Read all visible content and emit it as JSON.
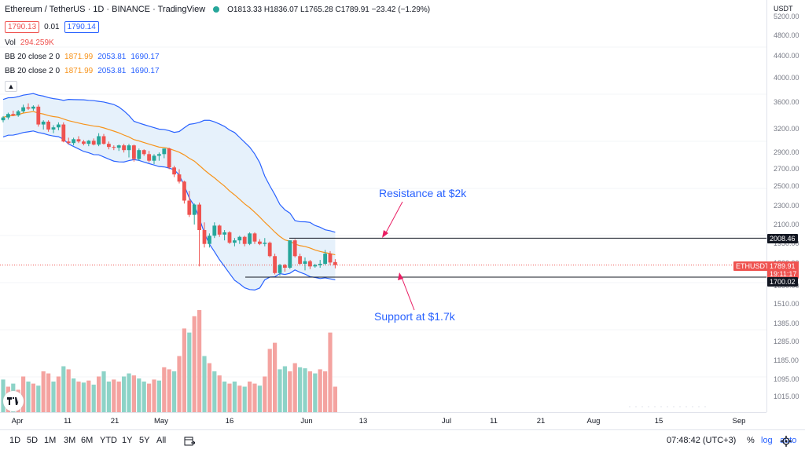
{
  "header": {
    "symbol": "Ethereum / TetherUS · 1D · BINANCE · TradingView",
    "status_dot_color": "#26a69a",
    "ohlc": "O1813.33 H1836.07 L1765.28 C1789.91 −23.42 (−1.29%)",
    "bid": "1790.13",
    "spread": "0.01",
    "ask": "1790.14",
    "vol_label": "Vol",
    "vol_value": "294.259K",
    "bb1_label": "BB 20 close 2 0",
    "bb1_basis": "1871.99",
    "bb1_upper": "2053.81",
    "bb1_lower": "1690.17",
    "bb2_label": "BB 20 close 2 0",
    "bb2_basis": "1871.99",
    "bb2_upper": "2053.81",
    "bb2_lower": "1690.17",
    "collapse_icon": "chevron-up-icon"
  },
  "price_axis": {
    "currency": "USDT",
    "ticks": [
      "5200.00",
      "4800.00",
      "4400.00",
      "4000.00",
      "3600.00",
      "3200.00",
      "2900.00",
      "2700.00",
      "2500.00",
      "2300.00",
      "2100.00",
      "1950.00",
      "1800.00",
      "1650.00",
      "1510.00",
      "1385.00",
      "1285.00",
      "1185.00",
      "1095.00",
      "1015.00"
    ]
  },
  "tags": {
    "resistance_value": "2008.46",
    "symbol_tag": "ETHUSDT",
    "last_price": "1789.91",
    "countdown": "19:11:17",
    "support_value": "1700.02"
  },
  "annotations": {
    "resistance": "Resistance at $2k",
    "support": "Support at $1.7k"
  },
  "time_axis": {
    "labels": [
      "Apr",
      "11",
      "21",
      "May",
      "16",
      "Jun",
      "13",
      "Jul",
      "11",
      "21",
      "Aug",
      "15",
      "Sep"
    ]
  },
  "bottom_bar": {
    "ranges": [
      "1D",
      "5D",
      "1M",
      "3M",
      "6M",
      "YTD",
      "1Y",
      "5Y",
      "All"
    ],
    "clock": "07:48:42 (UTC+3)",
    "percent": "%",
    "log": "log",
    "auto": "auto"
  },
  "colors": {
    "up": "#26a69a",
    "down": "#ef5350",
    "band": "#2962ff",
    "basis": "#f7931a",
    "band_fill": "#e3f0fb"
  },
  "chart_data": {
    "type": "candlestick",
    "symbol": "ETHUSDT",
    "interval": "1D",
    "ohlc": [
      [
        3330,
        3390,
        3300,
        3370
      ],
      [
        3370,
        3440,
        3340,
        3420
      ],
      [
        3420,
        3470,
        3390,
        3400
      ],
      [
        3400,
        3480,
        3380,
        3460
      ],
      [
        3460,
        3560,
        3440,
        3520
      ],
      [
        3520,
        3580,
        3480,
        3500
      ],
      [
        3500,
        3550,
        3470,
        3530
      ],
      [
        3530,
        3560,
        3240,
        3270
      ],
      [
        3270,
        3330,
        3200,
        3310
      ],
      [
        3310,
        3330,
        3170,
        3200
      ],
      [
        3200,
        3260,
        3150,
        3230
      ],
      [
        3230,
        3300,
        3190,
        3270
      ],
      [
        3270,
        3300,
        3030,
        3040
      ],
      [
        3040,
        3090,
        3000,
        3020
      ],
      [
        3020,
        3090,
        2990,
        3070
      ],
      [
        3070,
        3110,
        3020,
        3040
      ],
      [
        3040,
        3060,
        2990,
        3010
      ],
      [
        3010,
        3060,
        2980,
        3050
      ],
      [
        3050,
        3080,
        2990,
        3000
      ],
      [
        3000,
        3150,
        2980,
        3110
      ],
      [
        3110,
        3140,
        3000,
        3010
      ],
      [
        3010,
        3040,
        2940,
        2970
      ],
      [
        2970,
        2990,
        2930,
        2960
      ],
      [
        2960,
        3000,
        2920,
        2990
      ],
      [
        2990,
        3010,
        2900,
        2930
      ],
      [
        2930,
        3010,
        2840,
        2990
      ],
      [
        2990,
        3000,
        2790,
        2820
      ],
      [
        2820,
        2950,
        2800,
        2930
      ],
      [
        2930,
        2940,
        2860,
        2880
      ],
      [
        2880,
        2920,
        2780,
        2800
      ],
      [
        2800,
        2880,
        2760,
        2860
      ],
      [
        2860,
        2900,
        2800,
        2880
      ],
      [
        2880,
        2950,
        2830,
        2950
      ],
      [
        2950,
        2960,
        2700,
        2720
      ],
      [
        2720,
        2740,
        2610,
        2640
      ],
      [
        2640,
        2700,
        2540,
        2560
      ],
      [
        2560,
        2570,
        2330,
        2360
      ],
      [
        2360,
        2460,
        2200,
        2220
      ],
      [
        2220,
        2330,
        2130,
        2320
      ],
      [
        2320,
        2340,
        1780,
        2080
      ],
      [
        2080,
        2150,
        1930,
        1960
      ],
      [
        1960,
        2050,
        1930,
        2030
      ],
      [
        2030,
        2150,
        2010,
        2120
      ],
      [
        2120,
        2130,
        2020,
        2040
      ],
      [
        2040,
        2080,
        1990,
        2060
      ],
      [
        2060,
        2070,
        1960,
        1970
      ],
      [
        1970,
        2010,
        1940,
        1990
      ],
      [
        1990,
        2030,
        1960,
        2020
      ],
      [
        2020,
        2030,
        1940,
        1960
      ],
      [
        1960,
        2060,
        1950,
        2050
      ],
      [
        2050,
        2060,
        1960,
        1980
      ],
      [
        1980,
        2000,
        1950,
        1960
      ],
      [
        1960,
        2010,
        1940,
        1970
      ],
      [
        1970,
        1980,
        1850,
        1860
      ],
      [
        1860,
        1880,
        1720,
        1730
      ],
      [
        1730,
        1800,
        1710,
        1790
      ],
      [
        1790,
        1800,
        1740,
        1770
      ],
      [
        1770,
        1990,
        1760,
        1990
      ],
      [
        1990,
        2000,
        1850,
        1860
      ],
      [
        1860,
        1880,
        1790,
        1800
      ],
      [
        1800,
        1850,
        1750,
        1820
      ],
      [
        1820,
        1830,
        1760,
        1780
      ],
      [
        1780,
        1800,
        1770,
        1790
      ],
      [
        1790,
        1830,
        1770,
        1800
      ],
      [
        1800,
        1910,
        1790,
        1880
      ],
      [
        1880,
        1900,
        1790,
        1810
      ],
      [
        1813.33,
        1836.07,
        1765.28,
        1789.91
      ]
    ],
    "volume": [
      [
        "up",
        0.32
      ],
      [
        "down",
        0.25
      ],
      [
        "up",
        0.28
      ],
      [
        "down",
        0.22
      ],
      [
        "down",
        0.35
      ],
      [
        "up",
        0.3
      ],
      [
        "down",
        0.28
      ],
      [
        "up",
        0.26
      ],
      [
        "down",
        0.4
      ],
      [
        "down",
        0.38
      ],
      [
        "up",
        0.3
      ],
      [
        "down",
        0.35
      ],
      [
        "up",
        0.45
      ],
      [
        "down",
        0.42
      ],
      [
        "up",
        0.33
      ],
      [
        "down",
        0.3
      ],
      [
        "up",
        0.29
      ],
      [
        "down",
        0.31
      ],
      [
        "up",
        0.27
      ],
      [
        "down",
        0.35
      ],
      [
        "up",
        0.4
      ],
      [
        "up",
        0.3
      ],
      [
        "down",
        0.32
      ],
      [
        "down",
        0.3
      ],
      [
        "up",
        0.35
      ],
      [
        "up",
        0.38
      ],
      [
        "down",
        0.36
      ],
      [
        "up",
        0.33
      ],
      [
        "up",
        0.3
      ],
      [
        "down",
        0.28
      ],
      [
        "down",
        0.32
      ],
      [
        "up",
        0.31
      ],
      [
        "down",
        0.44
      ],
      [
        "down",
        0.42
      ],
      [
        "up",
        0.4
      ],
      [
        "down",
        0.55
      ],
      [
        "down",
        0.82
      ],
      [
        "up",
        0.78
      ],
      [
        "down",
        0.94
      ],
      [
        "down",
        1.0
      ],
      [
        "up",
        0.55
      ],
      [
        "down",
        0.48
      ],
      [
        "up",
        0.4
      ],
      [
        "down",
        0.36
      ],
      [
        "up",
        0.3
      ],
      [
        "down",
        0.28
      ],
      [
        "up",
        0.3
      ],
      [
        "down",
        0.26
      ],
      [
        "up",
        0.25
      ],
      [
        "down",
        0.3
      ],
      [
        "down",
        0.28
      ],
      [
        "up",
        0.26
      ],
      [
        "down",
        0.35
      ],
      [
        "down",
        0.62
      ],
      [
        "down",
        0.68
      ],
      [
        "up",
        0.42
      ],
      [
        "up",
        0.45
      ],
      [
        "down",
        0.4
      ],
      [
        "down",
        0.48
      ],
      [
        "up",
        0.44
      ],
      [
        "up",
        0.43
      ],
      [
        "down",
        0.4
      ],
      [
        "up",
        0.38
      ],
      [
        "down",
        0.42
      ],
      [
        "down",
        0.4
      ],
      [
        "down",
        0.78
      ],
      [
        "down",
        0.25
      ]
    ],
    "resistance": 2008.46,
    "support": 1700.02,
    "last_price": 1789.91,
    "y_axis": "log",
    "ylim": [
      1000,
      5400
    ]
  }
}
